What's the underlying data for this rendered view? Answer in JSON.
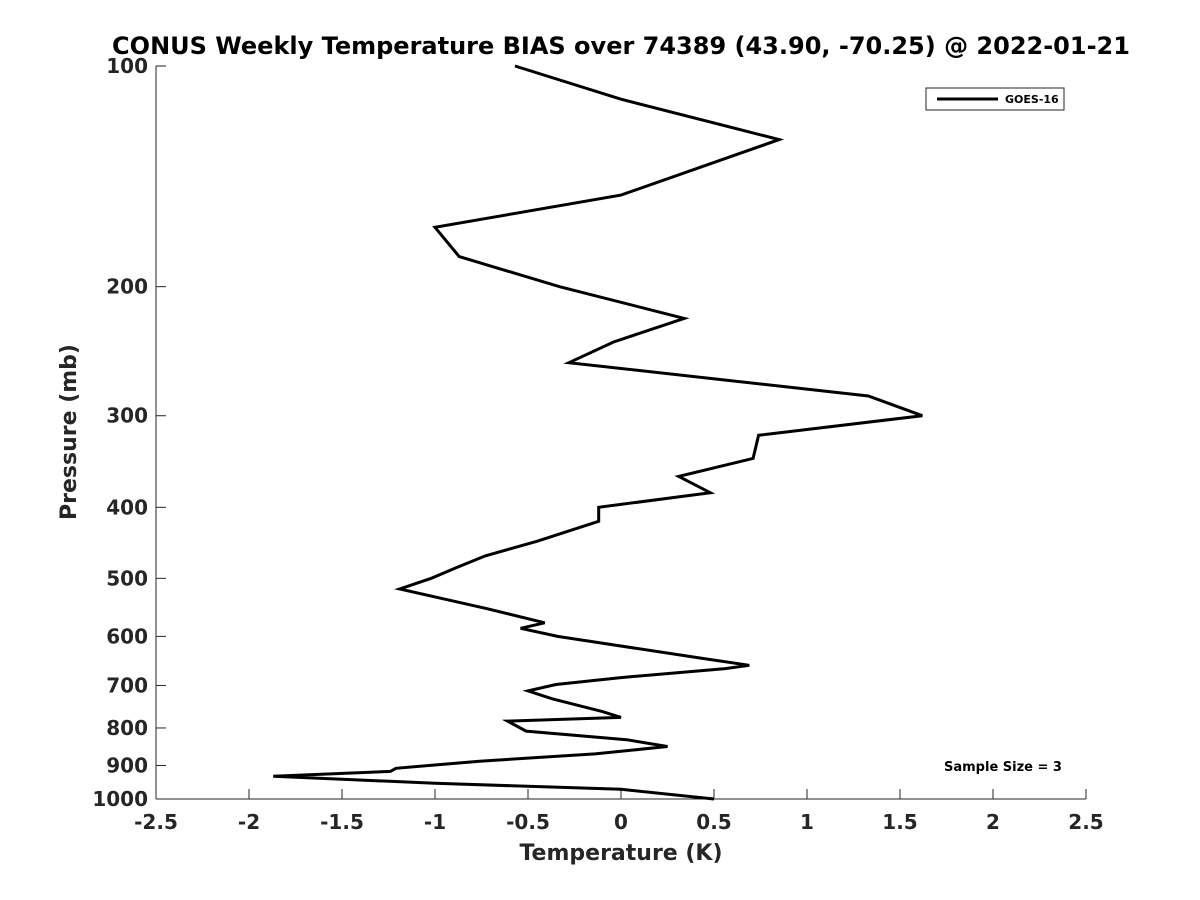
{
  "chart_data": {
    "type": "line",
    "title": "CONUS Weekly Temperature BIAS over 74389 (43.90, -70.25) @ 2022-01-21",
    "xlabel": "Temperature (K)",
    "ylabel": "Pressure (mb)",
    "xlim": [
      -2.5,
      2.5
    ],
    "ylim": [
      1000,
      100
    ],
    "yscale": "log",
    "xticks": [
      -2.5,
      -2,
      -1.5,
      -1,
      -0.5,
      0,
      0.5,
      1,
      1.5,
      2,
      2.5
    ],
    "xtick_labels": [
      "-2.5",
      "-2",
      "-1.5",
      "-1",
      "-0.5",
      "0",
      "0.5",
      "1",
      "1.5",
      "2",
      "2.5"
    ],
    "yticks": [
      100,
      200,
      300,
      400,
      500,
      600,
      700,
      800,
      900,
      1000
    ],
    "ytick_labels": [
      "100",
      "200",
      "300",
      "400",
      "500",
      "600",
      "700",
      "800",
      "900",
      "1000"
    ],
    "grid": false,
    "legend_position": "top-right",
    "series": [
      {
        "name": "GOES-16",
        "color": "#000000",
        "points": [
          {
            "x": -0.57,
            "p": 100
          },
          {
            "x": 0.0,
            "p": 111
          },
          {
            "x": 0.85,
            "p": 126
          },
          {
            "x": 0.0,
            "p": 150
          },
          {
            "x": -1.0,
            "p": 166
          },
          {
            "x": -0.87,
            "p": 182
          },
          {
            "x": -0.33,
            "p": 200
          },
          {
            "x": 0.34,
            "p": 221
          },
          {
            "x": -0.04,
            "p": 238
          },
          {
            "x": -0.28,
            "p": 254
          },
          {
            "x": 1.33,
            "p": 282
          },
          {
            "x": 1.62,
            "p": 300
          },
          {
            "x": 0.74,
            "p": 319
          },
          {
            "x": 0.71,
            "p": 343
          },
          {
            "x": 0.31,
            "p": 363
          },
          {
            "x": 0.48,
            "p": 382
          },
          {
            "x": -0.12,
            "p": 400
          },
          {
            "x": -0.12,
            "p": 418
          },
          {
            "x": -0.45,
            "p": 445
          },
          {
            "x": -0.73,
            "p": 466
          },
          {
            "x": -0.89,
            "p": 484
          },
          {
            "x": -1.02,
            "p": 500
          },
          {
            "x": -1.19,
            "p": 517
          },
          {
            "x": -0.72,
            "p": 550
          },
          {
            "x": -0.41,
            "p": 575
          },
          {
            "x": -0.54,
            "p": 585
          },
          {
            "x": -0.34,
            "p": 600
          },
          {
            "x": 0.42,
            "p": 642
          },
          {
            "x": 0.69,
            "p": 657
          },
          {
            "x": 0.56,
            "p": 664
          },
          {
            "x": 0.0,
            "p": 683
          },
          {
            "x": -0.35,
            "p": 698
          },
          {
            "x": -0.5,
            "p": 712
          },
          {
            "x": -0.37,
            "p": 730
          },
          {
            "x": -0.1,
            "p": 760
          },
          {
            "x": 0.0,
            "p": 774
          },
          {
            "x": -0.61,
            "p": 783
          },
          {
            "x": -0.51,
            "p": 808
          },
          {
            "x": 0.03,
            "p": 830
          },
          {
            "x": 0.25,
            "p": 848
          },
          {
            "x": -0.14,
            "p": 868
          },
          {
            "x": -0.76,
            "p": 888
          },
          {
            "x": -1.21,
            "p": 908
          },
          {
            "x": -1.24,
            "p": 917
          },
          {
            "x": -1.87,
            "p": 931
          },
          {
            "x": -1.0,
            "p": 952
          },
          {
            "x": 0.0,
            "p": 970
          },
          {
            "x": 0.5,
            "p": 1000
          }
        ]
      }
    ],
    "annotations": [
      "Sample Size = 3"
    ]
  }
}
